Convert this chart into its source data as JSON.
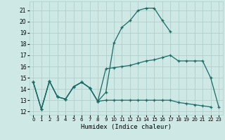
{
  "xlabel": "Humidex (Indice chaleur)",
  "background_color": "#cde8e5",
  "grid_color": "#aed0cc",
  "line_color": "#1a6b65",
  "x_ticks": [
    0,
    1,
    2,
    3,
    4,
    5,
    6,
    7,
    8,
    9,
    10,
    11,
    12,
    13,
    14,
    15,
    16,
    17,
    18,
    19,
    20,
    21,
    22,
    23
  ],
  "y_ticks": [
    12,
    13,
    14,
    15,
    16,
    17,
    18,
    19,
    20,
    21
  ],
  "ylim": [
    11.7,
    21.8
  ],
  "xlim": [
    -0.5,
    23.5
  ],
  "curve1_y": [
    14.6,
    12.2,
    14.7,
    13.3,
    13.1,
    14.2,
    14.6,
    14.1,
    12.9,
    13.0,
    13.0,
    13.0,
    13.0,
    13.0,
    13.0,
    13.0,
    13.0,
    13.0,
    12.8,
    12.7,
    12.6,
    12.5,
    12.4,
    null
  ],
  "curve2_y": [
    14.6,
    12.2,
    14.7,
    13.3,
    13.1,
    14.2,
    14.6,
    14.1,
    12.9,
    13.7,
    18.1,
    19.5,
    20.1,
    21.0,
    21.2,
    21.2,
    20.1,
    19.1,
    null,
    null,
    null,
    null,
    null,
    null
  ],
  "curve3_y": [
    14.6,
    12.2,
    14.7,
    13.3,
    13.1,
    14.2,
    14.6,
    14.1,
    12.9,
    15.8,
    15.9,
    16.0,
    16.1,
    16.3,
    16.5,
    16.6,
    16.8,
    17.0,
    16.5,
    16.5,
    16.5,
    16.5,
    15.0,
    12.4
  ]
}
